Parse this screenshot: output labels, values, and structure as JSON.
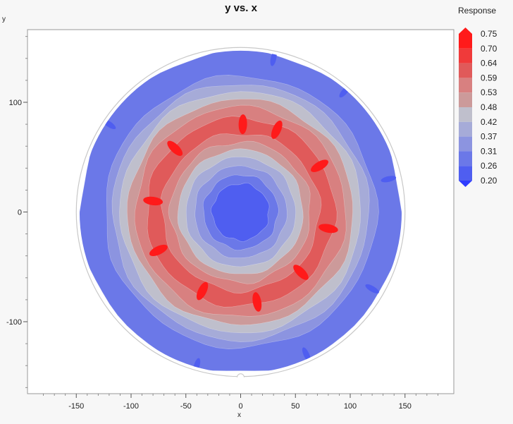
{
  "chart_data": {
    "type": "contour",
    "title": "y vs. x",
    "xlabel": "x",
    "ylabel": "y",
    "xlim": [
      -192,
      192
    ],
    "ylim": [
      -165,
      165
    ],
    "x_ticks": [
      -150,
      -100,
      -50,
      0,
      50,
      100,
      150
    ],
    "y_ticks": [
      -100,
      0,
      100
    ],
    "wafer_radius": 150,
    "data_radius": 147,
    "legend": {
      "title": "Response",
      "placement": "right",
      "levels": [
        "0.75",
        "0.70",
        "0.64",
        "0.59",
        "0.53",
        "0.48",
        "0.42",
        "0.37",
        "0.31",
        "0.26",
        "0.20"
      ],
      "colors": [
        "#ff1a1a",
        "#f03a3a",
        "#e05a5a",
        "#d88080",
        "#cc9a9a",
        "#bfbfcc",
        "#a6abd8",
        "#8c94e0",
        "#6b78e8",
        "#4f5ef0",
        "#2f3cff"
      ]
    },
    "response_bands": [
      {
        "r_inner": 0,
        "r_outer": 26,
        "value_range": [
          0.2,
          0.26
        ]
      },
      {
        "r_inner": 26,
        "r_outer": 34,
        "value_range": [
          0.26,
          0.31
        ]
      },
      {
        "r_inner": 34,
        "r_outer": 42,
        "value_range": [
          0.31,
          0.37
        ]
      },
      {
        "r_inner": 42,
        "r_outer": 50,
        "value_range": [
          0.37,
          0.42
        ]
      },
      {
        "r_inner": 50,
        "r_outer": 57,
        "value_range": [
          0.42,
          0.48
        ]
      },
      {
        "r_inner": 57,
        "r_outer": 64,
        "value_range": [
          0.48,
          0.53
        ]
      },
      {
        "r_inner": 64,
        "r_outer": 72,
        "value_range": [
          0.53,
          0.59
        ]
      },
      {
        "r_inner": 72,
        "r_outer": 86,
        "value_range": [
          0.59,
          0.64
        ]
      },
      {
        "r_inner": 86,
        "r_outer": 96,
        "value_range": [
          0.53,
          0.59
        ]
      },
      {
        "r_inner": 96,
        "r_outer": 103,
        "value_range": [
          0.48,
          0.53
        ]
      },
      {
        "r_inner": 103,
        "r_outer": 110,
        "value_range": [
          0.42,
          0.48
        ]
      },
      {
        "r_inner": 110,
        "r_outer": 117,
        "value_range": [
          0.37,
          0.42
        ]
      },
      {
        "r_inner": 117,
        "r_outer": 124,
        "value_range": [
          0.31,
          0.37
        ]
      },
      {
        "r_inner": 124,
        "r_outer": 147,
        "value_range": [
          0.26,
          0.31
        ]
      }
    ],
    "hot_spots": [
      {
        "x": 2,
        "y": 80,
        "value_range": [
          0.7,
          0.75
        ]
      },
      {
        "x": 33,
        "y": 75,
        "value_range": [
          0.7,
          0.75
        ]
      },
      {
        "x": -60,
        "y": 58,
        "value_range": [
          0.7,
          0.75
        ]
      },
      {
        "x": 72,
        "y": 42,
        "value_range": [
          0.7,
          0.75
        ]
      },
      {
        "x": -80,
        "y": 10,
        "value_range": [
          0.7,
          0.75
        ]
      },
      {
        "x": 80,
        "y": -15,
        "value_range": [
          0.7,
          0.75
        ]
      },
      {
        "x": -75,
        "y": -35,
        "value_range": [
          0.7,
          0.75
        ]
      },
      {
        "x": 55,
        "y": -55,
        "value_range": [
          0.7,
          0.75
        ]
      },
      {
        "x": -35,
        "y": -72,
        "value_range": [
          0.7,
          0.75
        ]
      },
      {
        "x": 15,
        "y": -82,
        "value_range": [
          0.7,
          0.75
        ]
      }
    ],
    "edge_spots": [
      {
        "x": -120,
        "y": 80,
        "value_range": [
          0.2,
          0.26
        ]
      },
      {
        "x": 95,
        "y": 110,
        "value_range": [
          0.2,
          0.26
        ]
      },
      {
        "x": 30,
        "y": 140,
        "value_range": [
          0.2,
          0.26
        ]
      },
      {
        "x": 135,
        "y": 30,
        "value_range": [
          0.2,
          0.26
        ]
      },
      {
        "x": 120,
        "y": -70,
        "value_range": [
          0.2,
          0.26
        ]
      },
      {
        "x": 60,
        "y": -130,
        "value_range": [
          0.2,
          0.26
        ]
      },
      {
        "x": -40,
        "y": -140,
        "value_range": [
          0.2,
          0.26
        ]
      }
    ]
  }
}
